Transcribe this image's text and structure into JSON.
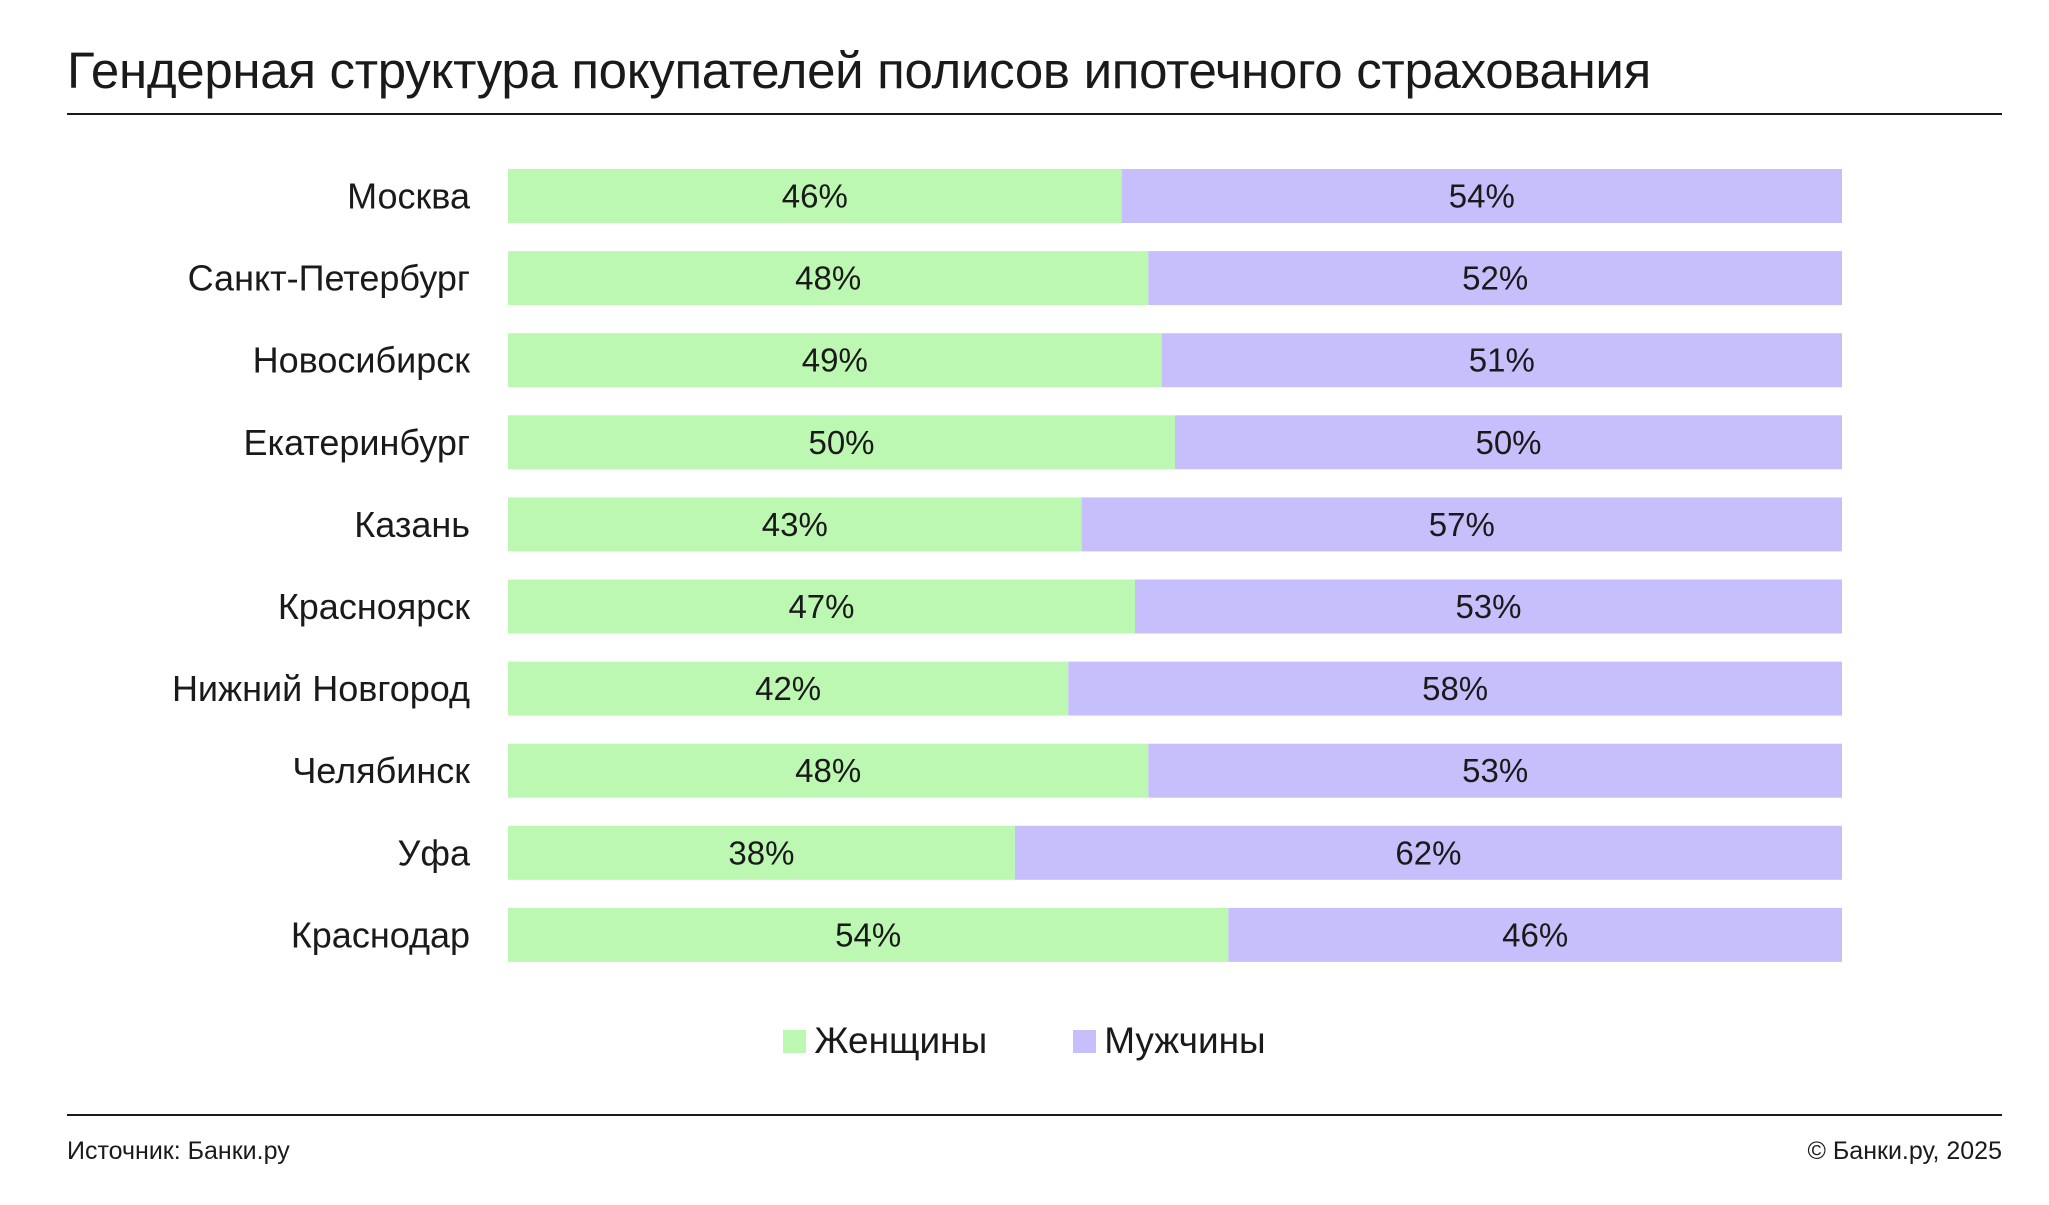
{
  "title": "Гендерная структура покупателей полисов ипотечного страхования",
  "footer": {
    "source": "Источник: Банки.ру",
    "copyright": "© Банки.ру, 2025"
  },
  "colors": {
    "women": "#bdf8b3",
    "men": "#c6bffc",
    "text": "#1a1a1a"
  },
  "chart_data": {
    "type": "bar",
    "orientation": "horizontal",
    "stacked": true,
    "title": "Гендерная структура покупателей полисов ипотечного страхования",
    "legend_position": "bottom",
    "grid": false,
    "xlim": [
      0,
      100
    ],
    "categories": [
      "Москва",
      "Санкт-Петербург",
      "Новосибирск",
      "Екатеринбург",
      "Казань",
      "Красноярск",
      "Нижний Новгород",
      "Челябинск",
      "Уфа",
      "Краснодар"
    ],
    "series": [
      {
        "name": "Женщины",
        "color": "#bdf8b3",
        "values": [
          46,
          48,
          49,
          50,
          43,
          47,
          42,
          48,
          38,
          54
        ],
        "labels": [
          "46%",
          "48%",
          "49%",
          "50%",
          "43%",
          "47%",
          "42%",
          "48%",
          "38%",
          "54%"
        ]
      },
      {
        "name": "Мужчины",
        "color": "#c6bffc",
        "values": [
          54,
          52,
          51,
          50,
          57,
          53,
          58,
          53,
          62,
          46
        ],
        "labels": [
          "54%",
          "52%",
          "51%",
          "50%",
          "57%",
          "53%",
          "58%",
          "53%",
          "62%",
          "46%"
        ]
      }
    ]
  }
}
